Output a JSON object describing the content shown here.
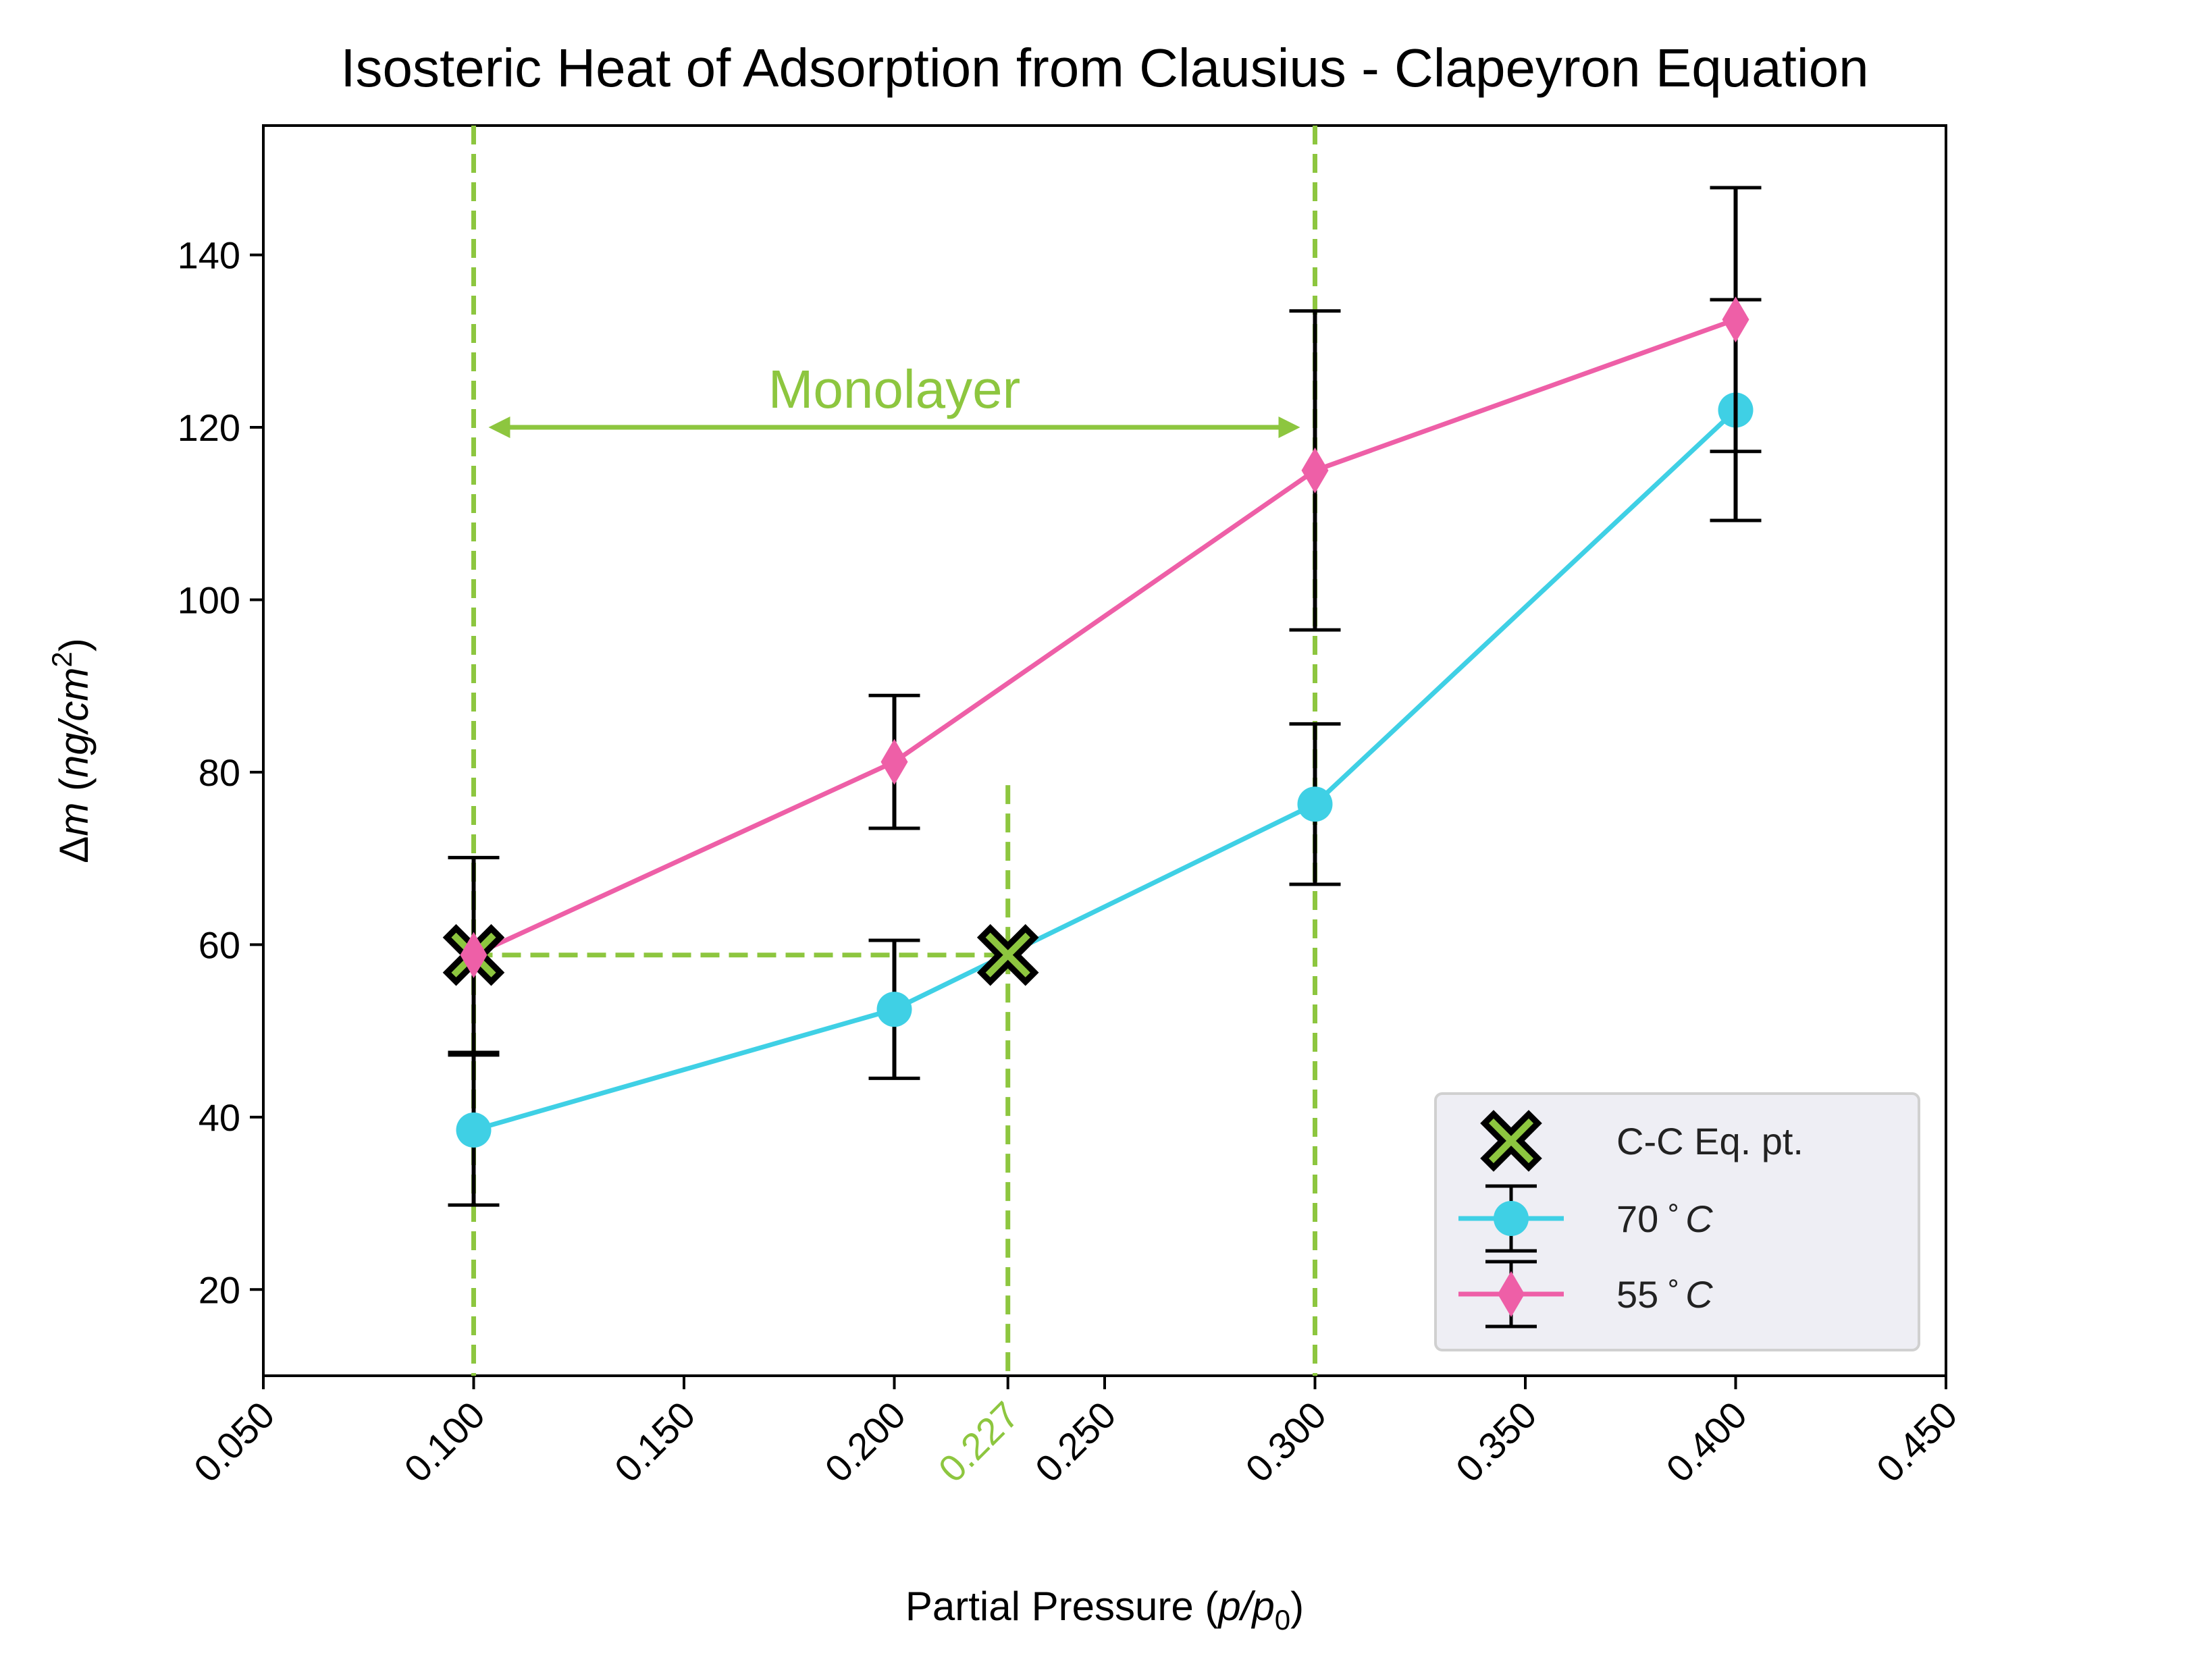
{
  "chart_data": {
    "type": "line",
    "title": "Isosteric Heat of Adsorption from Clausius - Clapeyron Equation",
    "xlabel": {
      "prefix": "Partial Pressure (",
      "italic": "p/p",
      "sub": "0",
      "suffix": ")"
    },
    "ylabel": {
      "prefix": "Δ",
      "italic": "m",
      "mid": " (",
      "italic2": "ng/cm",
      "sup": "2",
      "suffix": ")"
    },
    "xlim": [
      0.05,
      0.45
    ],
    "ylim": [
      10,
      155
    ],
    "xticks": [
      0.05,
      0.1,
      0.15,
      0.2,
      0.25,
      0.3,
      0.35,
      0.4,
      0.45
    ],
    "xtick_labels": [
      "0.050",
      "0.100",
      "0.150",
      "0.200",
      "0.250",
      "0.300",
      "0.350",
      "0.400",
      "0.450"
    ],
    "extra_xtick": {
      "value": 0.227,
      "label": "0.227",
      "color": "#8dc63f"
    },
    "yticks": [
      20,
      40,
      60,
      80,
      100,
      120,
      140
    ],
    "ytick_labels": [
      "20",
      "40",
      "60",
      "80",
      "100",
      "120",
      "140"
    ],
    "grid": false,
    "legend_position": "lower right",
    "series": [
      {
        "name": "70$^\\circ C$",
        "legend_label": {
          "num": "70",
          "unit": "C"
        },
        "color": "#3fd0e5",
        "marker": "circle",
        "x": [
          0.1,
          0.2,
          0.3,
          0.4
        ],
        "y": [
          38.5,
          52.5,
          76.3,
          122.0
        ],
        "yerr": [
          8.7,
          8.0,
          9.3,
          12.8
        ]
      },
      {
        "name": "55$^\\circ C$",
        "legend_label": {
          "num": "55",
          "unit": "C"
        },
        "color": "#ee5fa7",
        "marker": "diamond",
        "x": [
          0.1,
          0.2,
          0.3,
          0.4
        ],
        "y": [
          58.8,
          81.2,
          115.0,
          132.5
        ],
        "yerr": [
          11.3,
          7.7,
          18.5,
          15.3
        ]
      }
    ],
    "cc_points": {
      "name": "C-C Eq. pt.",
      "color": "#8dc63f",
      "edge_color": "#000000",
      "marker": "thick-x",
      "x": [
        0.1,
        0.227
      ],
      "y": [
        58.8,
        58.8
      ]
    },
    "reference_lines": {
      "color": "#8dc63f",
      "vertical_full": [
        0.1,
        0.3
      ],
      "vertical_partial": {
        "x": 0.227,
        "y_top": 78.5
      },
      "horizontal": {
        "y": 58.8,
        "x_from": 0.1,
        "x_to": 0.227
      }
    },
    "annotation": {
      "text": "Monolayer",
      "color": "#8dc63f",
      "arrow_y": 120,
      "arrow_x_from": 0.1,
      "arrow_x_to": 0.3,
      "text_x": 0.2,
      "text_y": 124
    }
  }
}
